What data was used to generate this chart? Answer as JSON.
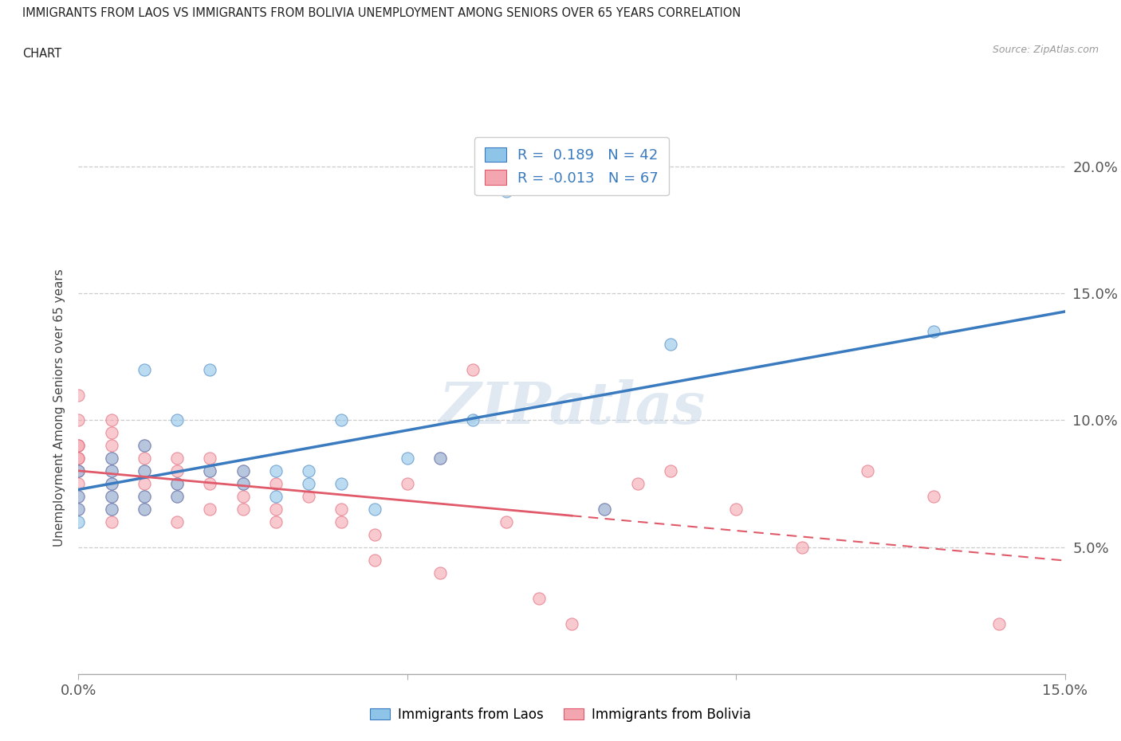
{
  "title_line1": "IMMIGRANTS FROM LAOS VS IMMIGRANTS FROM BOLIVIA UNEMPLOYMENT AMONG SENIORS OVER 65 YEARS CORRELATION",
  "title_line2": "CHART",
  "source": "Source: ZipAtlas.com",
  "ylabel": "Unemployment Among Seniors over 65 years",
  "xlim": [
    0.0,
    0.15
  ],
  "ylim": [
    0.0,
    0.21
  ],
  "xticks": [
    0.0,
    0.05,
    0.1,
    0.15
  ],
  "xtick_labels": [
    "0.0%",
    "",
    "",
    "15.0%"
  ],
  "ytick_labels_right": [
    "5.0%",
    "10.0%",
    "15.0%",
    "20.0%"
  ],
  "yticks": [
    0.05,
    0.1,
    0.15,
    0.2
  ],
  "laos_color": "#8ec4e8",
  "bolivia_color": "#f4a6b0",
  "laos_line_color": "#3a7bbf",
  "bolivia_line_color": "#e05a6a",
  "R_laos": 0.189,
  "N_laos": 42,
  "R_bolivia": -0.013,
  "N_bolivia": 67,
  "laos_scatter_x": [
    0.0,
    0.0,
    0.0,
    0.0,
    0.005,
    0.005,
    0.005,
    0.005,
    0.005,
    0.01,
    0.01,
    0.01,
    0.01,
    0.01,
    0.015,
    0.015,
    0.015,
    0.02,
    0.02,
    0.025,
    0.025,
    0.03,
    0.03,
    0.035,
    0.035,
    0.04,
    0.04,
    0.045,
    0.05,
    0.055,
    0.06,
    0.065,
    0.08,
    0.09,
    0.13
  ],
  "laos_scatter_y": [
    0.06,
    0.065,
    0.07,
    0.08,
    0.065,
    0.07,
    0.075,
    0.08,
    0.085,
    0.065,
    0.07,
    0.08,
    0.09,
    0.12,
    0.07,
    0.075,
    0.1,
    0.08,
    0.12,
    0.075,
    0.08,
    0.07,
    0.08,
    0.075,
    0.08,
    0.075,
    0.1,
    0.065,
    0.085,
    0.085,
    0.1,
    0.19,
    0.065,
    0.13,
    0.135
  ],
  "bolivia_scatter_x": [
    0.0,
    0.0,
    0.0,
    0.0,
    0.0,
    0.0,
    0.0,
    0.0,
    0.0,
    0.0,
    0.0,
    0.005,
    0.005,
    0.005,
    0.005,
    0.005,
    0.005,
    0.005,
    0.005,
    0.005,
    0.01,
    0.01,
    0.01,
    0.01,
    0.01,
    0.01,
    0.015,
    0.015,
    0.015,
    0.015,
    0.015,
    0.02,
    0.02,
    0.02,
    0.02,
    0.025,
    0.025,
    0.025,
    0.025,
    0.03,
    0.03,
    0.03,
    0.035,
    0.04,
    0.04,
    0.045,
    0.045,
    0.05,
    0.055,
    0.055,
    0.06,
    0.065,
    0.07,
    0.075,
    0.08,
    0.085,
    0.09,
    0.1,
    0.11,
    0.12,
    0.13,
    0.14
  ],
  "bolivia_scatter_y": [
    0.065,
    0.07,
    0.075,
    0.08,
    0.08,
    0.085,
    0.085,
    0.09,
    0.09,
    0.1,
    0.11,
    0.06,
    0.065,
    0.07,
    0.075,
    0.08,
    0.085,
    0.09,
    0.095,
    0.1,
    0.065,
    0.07,
    0.075,
    0.08,
    0.085,
    0.09,
    0.06,
    0.07,
    0.075,
    0.08,
    0.085,
    0.065,
    0.075,
    0.08,
    0.085,
    0.065,
    0.07,
    0.075,
    0.08,
    0.06,
    0.065,
    0.075,
    0.07,
    0.06,
    0.065,
    0.045,
    0.055,
    0.075,
    0.04,
    0.085,
    0.12,
    0.06,
    0.03,
    0.02,
    0.065,
    0.075,
    0.08,
    0.065,
    0.05,
    0.08,
    0.07,
    0.02
  ],
  "watermark": "ZIPatlas",
  "background_color": "#ffffff",
  "grid_color": "#cccccc"
}
